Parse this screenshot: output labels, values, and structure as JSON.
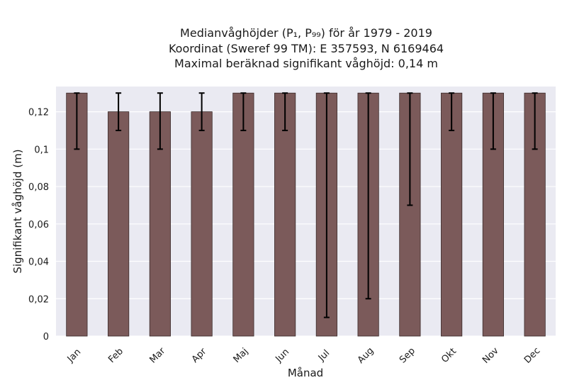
{
  "chart_data": {
    "type": "bar",
    "title_lines": [
      "Medianvåghöjder (P₁, P₉₉) för år 1979 - 2019",
      "Koordinat (Sweref 99 TM): E 357593, N 6169464",
      "Maximal beräknad signifikant våghöjd: 0,14 m"
    ],
    "xlabel": "Månad",
    "ylabel": "Signifikant våghöjd (m)",
    "categories": [
      "Jan",
      "Feb",
      "Mar",
      "Apr",
      "Maj",
      "Jun",
      "Jul",
      "Aug",
      "Sep",
      "Okt",
      "Nov",
      "Dec"
    ],
    "values": [
      0.13,
      0.12,
      0.12,
      0.12,
      0.13,
      0.13,
      0.13,
      0.13,
      0.13,
      0.13,
      0.13,
      0.13
    ],
    "error_low": [
      0.1,
      0.11,
      0.1,
      0.11,
      0.11,
      0.11,
      0.01,
      0.02,
      0.07,
      0.11,
      0.1,
      0.1
    ],
    "error_high": [
      0.13,
      0.13,
      0.13,
      0.13,
      0.13,
      0.13,
      0.13,
      0.13,
      0.13,
      0.13,
      0.13,
      0.13
    ],
    "ylim": [
      0,
      0.1335
    ],
    "yticks": [
      0,
      0.02,
      0.04,
      0.06,
      0.08,
      0.1,
      0.12
    ],
    "ytick_labels": [
      "0",
      "0,02",
      "0,04",
      "0,06",
      "0,08",
      "0,1",
      "0,12"
    ],
    "grid": true,
    "colors": {
      "bar": "#7b5a5a",
      "bar_edge": "#3a2a2a",
      "plot_bg": "#eaeaf2",
      "grid": "#ffffff",
      "error_bar": "#000000"
    }
  }
}
